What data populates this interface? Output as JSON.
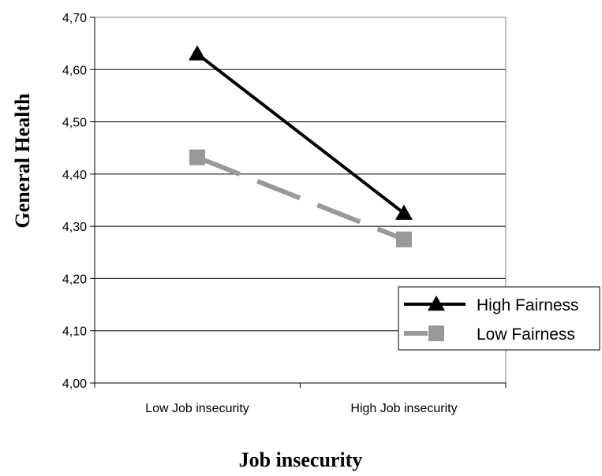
{
  "chart_data": {
    "type": "line",
    "title": "",
    "xlabel": "Job insecurity",
    "ylabel": "General Health",
    "categories": [
      "Low Job insecurity",
      "High Job insecurity"
    ],
    "ylim": [
      4.0,
      4.7
    ],
    "yticks": [
      "4,00",
      "4,10",
      "4,20",
      "4,30",
      "4,40",
      "4,50",
      "4,60",
      "4,70"
    ],
    "grid": true,
    "legend_position": "bottom-right",
    "series": [
      {
        "name": "High Fairness",
        "values": [
          4.63,
          4.325
        ],
        "color": "#000000",
        "marker": "triangle",
        "dash": false
      },
      {
        "name": "Low Fairness",
        "values": [
          4.432,
          4.275
        ],
        "color": "#999999",
        "marker": "square",
        "dash": true
      }
    ]
  }
}
